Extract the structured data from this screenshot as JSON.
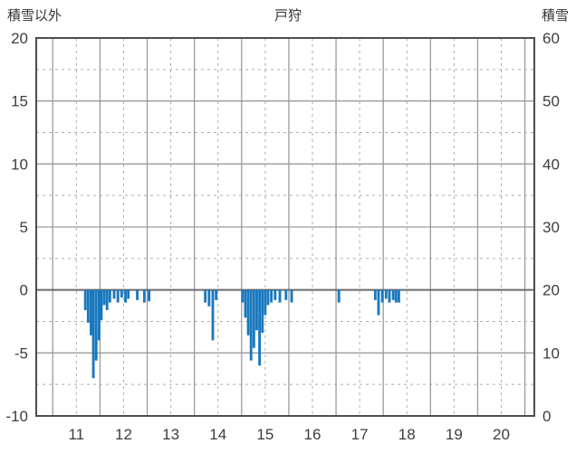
{
  "header": {
    "left_axis_title": "積雪以外",
    "chart_title": "戸狩",
    "right_axis_title": "積雪"
  },
  "chart_data": {
    "type": "bar",
    "title": "戸狩",
    "x_axis": {
      "min": 10.15,
      "max": 20.7,
      "ticks": [
        11,
        12,
        13,
        14,
        15,
        16,
        17,
        18,
        19,
        20
      ],
      "solid_grid": [
        10.5,
        11.5,
        12.5,
        13.5,
        14.5,
        15.5,
        16.5,
        17.5,
        18.5,
        19.5,
        20.5
      ],
      "dashed_grid": [
        11,
        12,
        13,
        14,
        15,
        16,
        17,
        18,
        19,
        20
      ]
    },
    "left_axis": {
      "title": "積雪以外",
      "min": -10,
      "max": 20,
      "ticks": [
        20,
        15,
        10,
        5,
        0,
        -5,
        -10
      ],
      "dashed_grid": [
        17.5,
        12.5,
        7.5,
        2.5,
        -2.5,
        -7.5
      ]
    },
    "right_axis": {
      "title": "積雪",
      "min": 0,
      "max": 60,
      "ticks": [
        60,
        50,
        40,
        30,
        20,
        10,
        0
      ]
    },
    "grid": {
      "solid_color": "#9b9b9b",
      "dashed_color": "#aeaeae",
      "zero_color": "#6b6b6b",
      "border_color": "#4d4d4d"
    },
    "bar_color": "#1878be",
    "bar_width": 0.055,
    "series": [
      {
        "name": "積雪以外",
        "points": [
          [
            11.19,
            -1.6
          ],
          [
            11.25,
            -2.6
          ],
          [
            11.31,
            -3.6
          ],
          [
            11.36,
            -7.0
          ],
          [
            11.42,
            -5.6
          ],
          [
            11.48,
            -4.0
          ],
          [
            11.53,
            -2.4
          ],
          [
            11.59,
            -1.2
          ],
          [
            11.65,
            -1.6
          ],
          [
            11.71,
            -1.0
          ],
          [
            11.8,
            -0.7
          ],
          [
            11.88,
            -1.0
          ],
          [
            11.96,
            -0.6
          ],
          [
            12.04,
            -1.0
          ],
          [
            12.1,
            -0.7
          ],
          [
            12.29,
            -0.8
          ],
          [
            12.44,
            -1.0
          ],
          [
            12.54,
            -0.9
          ],
          [
            13.73,
            -1.0
          ],
          [
            13.81,
            -1.3
          ],
          [
            13.89,
            -4.0
          ],
          [
            13.96,
            -0.8
          ],
          [
            14.52,
            -1.0
          ],
          [
            14.58,
            -2.2
          ],
          [
            14.64,
            -3.6
          ],
          [
            14.7,
            -5.6
          ],
          [
            14.76,
            -4.6
          ],
          [
            14.82,
            -3.2
          ],
          [
            14.88,
            -6.0
          ],
          [
            14.94,
            -3.4
          ],
          [
            15.0,
            -2.0
          ],
          [
            15.06,
            -1.2
          ],
          [
            15.13,
            -1.0
          ],
          [
            15.21,
            -0.8
          ],
          [
            15.31,
            -1.0
          ],
          [
            15.44,
            -0.8
          ],
          [
            15.56,
            -1.0
          ],
          [
            16.56,
            -1.0
          ],
          [
            17.33,
            -0.8
          ],
          [
            17.4,
            -2.0
          ],
          [
            17.48,
            -1.0
          ],
          [
            17.56,
            -0.7
          ],
          [
            17.63,
            -1.0
          ],
          [
            17.71,
            -0.8
          ],
          [
            17.77,
            -1.0
          ],
          [
            17.83,
            -1.0
          ]
        ]
      }
    ]
  }
}
